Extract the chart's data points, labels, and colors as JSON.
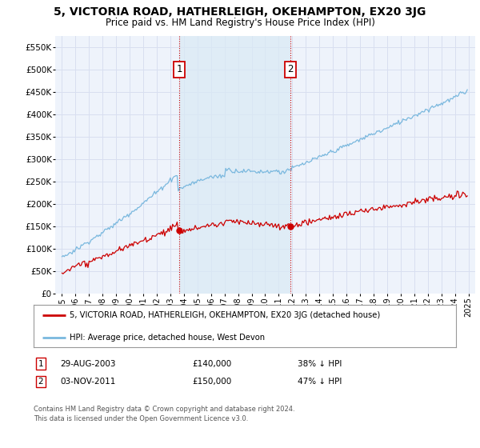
{
  "title": "5, VICTORIA ROAD, HATHERLEIGH, OKEHAMPTON, EX20 3JG",
  "subtitle": "Price paid vs. HM Land Registry's House Price Index (HPI)",
  "ylabel_ticks": [
    0,
    50000,
    100000,
    150000,
    200000,
    250000,
    300000,
    350000,
    400000,
    450000,
    500000,
    550000
  ],
  "ylabel_labels": [
    "£0",
    "£50K",
    "£100K",
    "£150K",
    "£200K",
    "£250K",
    "£300K",
    "£350K",
    "£400K",
    "£450K",
    "£500K",
    "£550K"
  ],
  "ylim": [
    0,
    575000
  ],
  "xlim_start": 1994.5,
  "xlim_end": 2025.5,
  "hpi_color": "#7ab8de",
  "hpi_shade_color": "#daeaf5",
  "property_color": "#cc0000",
  "sale1_year": 2003.65,
  "sale1_price": 140000,
  "sale2_year": 2011.84,
  "sale2_price": 150000,
  "legend_property": "5, VICTORIA ROAD, HATHERLEIGH, OKEHAMPTON, EX20 3JG (detached house)",
  "legend_hpi": "HPI: Average price, detached house, West Devon",
  "sale1_label": "1",
  "sale1_date": "29-AUG-2003",
  "sale1_amount": "£140,000",
  "sale1_hpi": "38% ↓ HPI",
  "sale2_label": "2",
  "sale2_date": "03-NOV-2011",
  "sale2_amount": "£150,000",
  "sale2_hpi": "47% ↓ HPI",
  "footnote1": "Contains HM Land Registry data © Crown copyright and database right 2024.",
  "footnote2": "This data is licensed under the Open Government Licence v3.0.",
  "bg_color": "#ffffff",
  "plot_bg_color": "#eef3fb",
  "grid_color": "#d8dff0"
}
